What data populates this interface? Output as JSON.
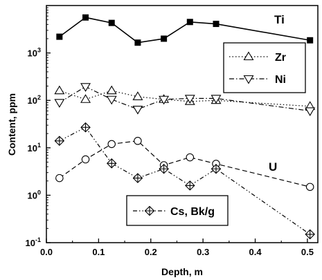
{
  "chart_data": {
    "type": "line",
    "title": "",
    "xlabel": "Depth, m",
    "ylabel": "Content, ppm",
    "xlim": [
      0.0,
      0.52
    ],
    "ylim": [
      0.1,
      10000
    ],
    "yscale": "log",
    "grid": false,
    "x_ticks": [
      "0.0",
      "0.1",
      "0.2",
      "0.3",
      "0.4",
      "0.5"
    ],
    "y_ticks": [
      {
        "base": "10",
        "exp": "-1"
      },
      {
        "base": "10",
        "exp": "0"
      },
      {
        "base": "10",
        "exp": "1"
      },
      {
        "base": "10",
        "exp": "2"
      },
      {
        "base": "10",
        "exp": "3"
      }
    ],
    "series": [
      {
        "name": "Ti",
        "marker": "filled-square",
        "line": "solid",
        "label_position": "top-right",
        "x": [
          0.025,
          0.075,
          0.125,
          0.175,
          0.225,
          0.275,
          0.325,
          0.505
        ],
        "y": [
          2200,
          5600,
          4300,
          1650,
          2000,
          4500,
          4100,
          1850
        ]
      },
      {
        "name": "Zr",
        "marker": "triangle-up",
        "line": "dotted",
        "label_position": "legend",
        "x": [
          0.025,
          0.075,
          0.125,
          0.175,
          0.225,
          0.275,
          0.325,
          0.505
        ],
        "y": [
          160,
          105,
          160,
          120,
          105,
          95,
          100,
          75
        ]
      },
      {
        "name": "Ni",
        "marker": "triangle-down",
        "line": "dash-dot",
        "label_position": "legend",
        "x": [
          0.025,
          0.075,
          0.125,
          0.175,
          0.225,
          0.275,
          0.325,
          0.505
        ],
        "y": [
          90,
          195,
          105,
          65,
          105,
          110,
          110,
          60
        ]
      },
      {
        "name": "U",
        "marker": "circle",
        "line": "dashed",
        "label_position": "right",
        "x": [
          0.025,
          0.075,
          0.125,
          0.175,
          0.225,
          0.275,
          0.325,
          0.505
        ],
        "y": [
          2.3,
          5.7,
          12,
          14,
          4.3,
          6.3,
          4.6,
          1.5
        ]
      },
      {
        "name": "Cs, Bk/g",
        "marker": "crossed-diamond",
        "line": "dash-dot-dot",
        "label_position": "legend",
        "x": [
          0.025,
          0.075,
          0.125,
          0.175,
          0.225,
          0.275,
          0.325,
          0.505
        ],
        "y": [
          14,
          27,
          4.7,
          2.3,
          3.6,
          1.6,
          3.6,
          0.15
        ]
      }
    ]
  }
}
